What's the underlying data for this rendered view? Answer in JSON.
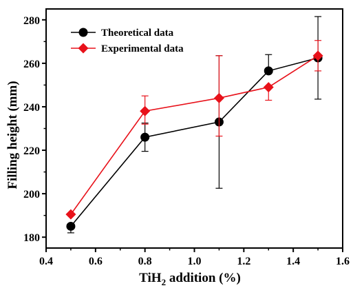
{
  "chart_data": {
    "type": "line",
    "title": "",
    "xlabel": {
      "base": "TiH",
      "subscript": "2",
      "rest": " addition (%)"
    },
    "ylabel": "Filling height  (mm)",
    "xlim": [
      0.4,
      1.6
    ],
    "ylim": [
      175,
      285
    ],
    "xticks": [
      0.4,
      0.6,
      0.8,
      1.0,
      1.2,
      1.4,
      1.6
    ],
    "xtick_labels": [
      "0.4",
      "0.6",
      "0.8",
      "1.0",
      "1.2",
      "1.4",
      "1.6"
    ],
    "yticks": [
      180,
      200,
      220,
      240,
      260,
      280
    ],
    "ytick_labels": [
      "180",
      "200",
      "220",
      "240",
      "260",
      "280"
    ],
    "grid": false,
    "legend_position": "top-left",
    "series": [
      {
        "name": "Theoretical data",
        "color": "#000000",
        "marker": "circle",
        "x": [
          0.5,
          0.8,
          1.1,
          1.3,
          1.5
        ],
        "y": [
          185,
          226,
          233,
          256.5,
          262.5
        ],
        "err_low": [
          3,
          6.5,
          30.5,
          0,
          19
        ],
        "err_high": [
          0,
          6.5,
          30.5,
          7.5,
          19
        ]
      },
      {
        "name": "Experimental data",
        "color": "#e8111a",
        "marker": "diamond",
        "x": [
          0.5,
          0.8,
          1.1,
          1.3,
          1.5
        ],
        "y": [
          190.5,
          238,
          244,
          249,
          263.5
        ],
        "err_low": [
          0,
          6,
          17.5,
          6,
          7
        ],
        "err_high": [
          0,
          7,
          19.5,
          0,
          7
        ]
      }
    ]
  }
}
